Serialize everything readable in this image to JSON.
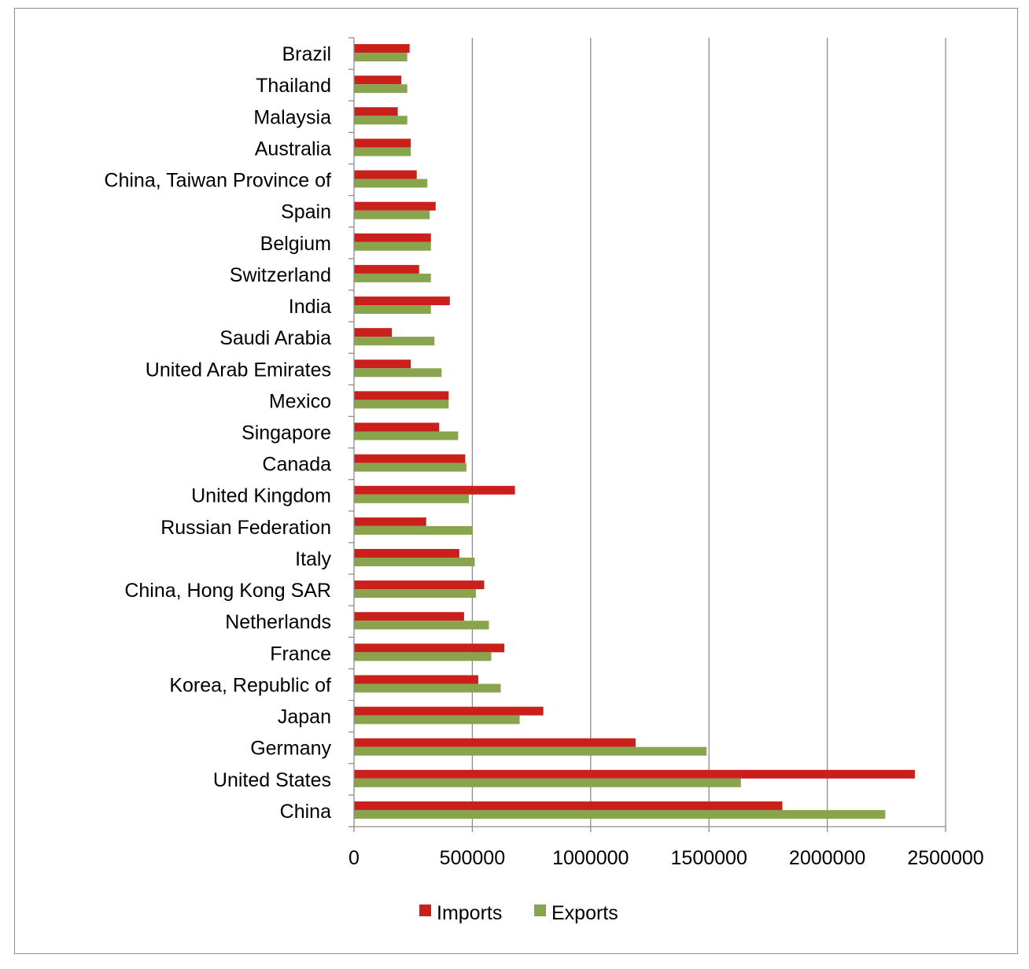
{
  "colors": {
    "imports": "#c9201c",
    "exports": "#88a44d",
    "grid": "#8c8c8c",
    "axis": "#8c8c8c"
  },
  "chart_data": {
    "type": "bar",
    "orientation": "horizontal",
    "categories": [
      "China",
      "United States",
      "Germany",
      "Japan",
      "Korea, Republic of",
      "France",
      "Netherlands",
      "China, Hong Kong SAR",
      "Italy",
      "Russian Federation",
      "United Kingdom",
      "Canada",
      "Singapore",
      "Mexico",
      "United Arab Emirates",
      "Saudi Arabia",
      "India",
      "Switzerland",
      "Belgium",
      "Spain",
      "China, Taiwan Province of",
      "Australia",
      "Malaysia",
      "Thailand",
      "Brazil"
    ],
    "series": [
      {
        "name": "Imports",
        "values": [
          1810000,
          2370000,
          1190000,
          800000,
          525000,
          635000,
          465000,
          550000,
          445000,
          305000,
          680000,
          470000,
          360000,
          400000,
          240000,
          160000,
          405000,
          275000,
          325000,
          345000,
          265000,
          240000,
          185000,
          200000,
          235000
        ]
      },
      {
        "name": "Exports",
        "values": [
          2245000,
          1635000,
          1490000,
          700000,
          620000,
          580000,
          570000,
          515000,
          510000,
          500000,
          485000,
          475000,
          440000,
          400000,
          370000,
          340000,
          325000,
          325000,
          325000,
          320000,
          310000,
          240000,
          225000,
          225000,
          225000
        ]
      }
    ],
    "xticks": [
      "0",
      "500000",
      "1000000",
      "1500000",
      "2000000",
      "2500000"
    ],
    "xlim": [
      0,
      2500000
    ],
    "grid": "vertical major gridlines",
    "legend": "bottom"
  }
}
